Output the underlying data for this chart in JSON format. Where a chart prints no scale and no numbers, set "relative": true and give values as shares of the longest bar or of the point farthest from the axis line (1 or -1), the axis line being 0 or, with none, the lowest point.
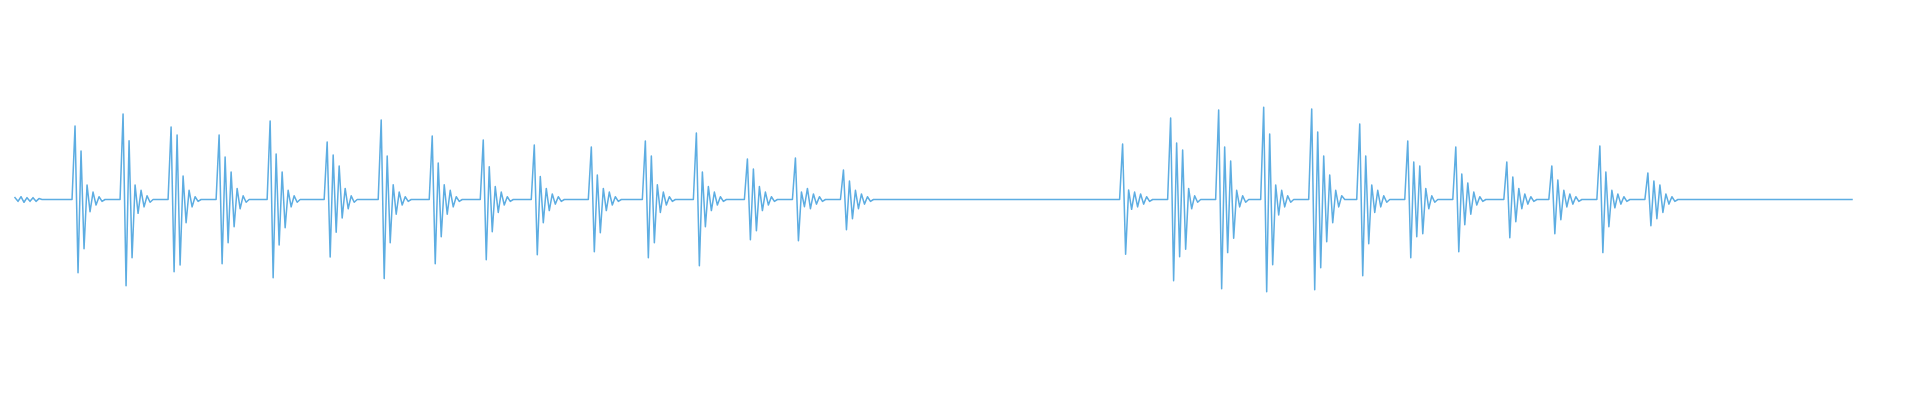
{
  "chart_data": {
    "type": "line",
    "relative": true,
    "categories": [
      null,
      null,
      null,
      null,
      null,
      null,
      null,
      null,
      null,
      null,
      null,
      null,
      null,
      null,
      null,
      null,
      null,
      null,
      null,
      null,
      null,
      null,
      null,
      null,
      null,
      null,
      null,
      null,
      null,
      null,
      null,
      null,
      null,
      null,
      null,
      null,
      null,
      null,
      null,
      null,
      null,
      null,
      null,
      null,
      null,
      null,
      null,
      null,
      null,
      null,
      null,
      null,
      null,
      null,
      null,
      null,
      null,
      null,
      null,
      null,
      null,
      null,
      null,
      null,
      null,
      null,
      null,
      null,
      null,
      null,
      null,
      null,
      null,
      null,
      null,
      null,
      null,
      null,
      null,
      null,
      null,
      null,
      null,
      null,
      null,
      null,
      null,
      null,
      null,
      null,
      null,
      null,
      null,
      null,
      null,
      null,
      null,
      null,
      null,
      null,
      null,
      null,
      null,
      null,
      null,
      null,
      null,
      null,
      null,
      null,
      null,
      null,
      null,
      null,
      null,
      null,
      null,
      null,
      null,
      null,
      null,
      null,
      null,
      null,
      null,
      null,
      null,
      null,
      null,
      null,
      null,
      null,
      null,
      null,
      null,
      null,
      null,
      null,
      null,
      null,
      null,
      null,
      null,
      null,
      null,
      null,
      null,
      null,
      null,
      null,
      null,
      null,
      null,
      null,
      null,
      null,
      null,
      null,
      null,
      null,
      null,
      null,
      null,
      null,
      null,
      null,
      null,
      null,
      null,
      null,
      null,
      null,
      null,
      null,
      null,
      null,
      null,
      null,
      null,
      null,
      null,
      null,
      null,
      null,
      null,
      null,
      null,
      null,
      null,
      null,
      null,
      null,
      null,
      null,
      null,
      null,
      null,
      null,
      null,
      null,
      null,
      null,
      null,
      null,
      null,
      null,
      null,
      null,
      null,
      null,
      null,
      null,
      null,
      null,
      null,
      null,
      null,
      null,
      null,
      null,
      null,
      null,
      null,
      null,
      null,
      null,
      null,
      null,
      null,
      null,
      null,
      null,
      null,
      null,
      null,
      null,
      null,
      null,
      null,
      null,
      null,
      null,
      null,
      null,
      null,
      null,
      null,
      null,
      null,
      null,
      null,
      null,
      null,
      null,
      null,
      null,
      null,
      null,
      null,
      null,
      null,
      null,
      null,
      null,
      null,
      null,
      null,
      null,
      null,
      null,
      null,
      null,
      null,
      null,
      null,
      null,
      null,
      null,
      null,
      null,
      null,
      null,
      null,
      null,
      null,
      null,
      null,
      null,
      null,
      null,
      null,
      null,
      null,
      null,
      null,
      null,
      null,
      null,
      null,
      null,
      null,
      null,
      null,
      null,
      null,
      null,
      null,
      null,
      null,
      null,
      null,
      null,
      null,
      null,
      null,
      null,
      null,
      null,
      null,
      null,
      null,
      null,
      null,
      null,
      null,
      null,
      null,
      null,
      null,
      null,
      null,
      null,
      null,
      null,
      null,
      null,
      null,
      null,
      null,
      null,
      null,
      null,
      null,
      null,
      null,
      null,
      null,
      null,
      null,
      null,
      null,
      null,
      null,
      null,
      null,
      null,
      null,
      null,
      null,
      null,
      null,
      null,
      null,
      null,
      null,
      null,
      null,
      null,
      null,
      null,
      null,
      null,
      null,
      null,
      null,
      null,
      null,
      null,
      null,
      null,
      null,
      null,
      null,
      null,
      null,
      null,
      null,
      null,
      null,
      null,
      null,
      null,
      null,
      null,
      null,
      null,
      null,
      null,
      null,
      null,
      null,
      null,
      null,
      null,
      null,
      null,
      null,
      null,
      null,
      null,
      null,
      null,
      null,
      null,
      null,
      null,
      null,
      null,
      null,
      null,
      null,
      null,
      null,
      null,
      null,
      null,
      null,
      null,
      null,
      null,
      null,
      null,
      null,
      null,
      null,
      null,
      null,
      null,
      null,
      null,
      null,
      null,
      null,
      null,
      null,
      null,
      null,
      null,
      null,
      null,
      null,
      null,
      null,
      null,
      null,
      null,
      null,
      null,
      null,
      null,
      null,
      null,
      null,
      null,
      null,
      null,
      null,
      null,
      null,
      null,
      null,
      null,
      null,
      null,
      null,
      null,
      null,
      null,
      null,
      null,
      null,
      null,
      null,
      null,
      null,
      null,
      null,
      null,
      null,
      null,
      null,
      null,
      null,
      null,
      null,
      null,
      null,
      null,
      null,
      null,
      null,
      null,
      null,
      null,
      null,
      null,
      null,
      null,
      null,
      null,
      null,
      null,
      null,
      null,
      null,
      null,
      null,
      null,
      null,
      null,
      null,
      null,
      null,
      null,
      null,
      null,
      null,
      null,
      null,
      null,
      null,
      null,
      null,
      null,
      null,
      null,
      null,
      null,
      null,
      null,
      null,
      null,
      null,
      null,
      null,
      null,
      null,
      null,
      null,
      null,
      null,
      null,
      null,
      null,
      null,
      null,
      null,
      null,
      null,
      null,
      null,
      null,
      null,
      null,
      null,
      null,
      null,
      null,
      null,
      null,
      null,
      null,
      null,
      null,
      null,
      null,
      null,
      null,
      null,
      null,
      null,
      null,
      null,
      null,
      null,
      null,
      null,
      null,
      null,
      null,
      null,
      null,
      null,
      null,
      null,
      null,
      null,
      null,
      null,
      null,
      null,
      null,
      null,
      null,
      null,
      null,
      null,
      null,
      null,
      null,
      null,
      null,
      null
    ],
    "series": [
      {
        "color": "#5dade2",
        "values": [
          0.51,
          0.49,
          0.515,
          0.485,
          0.51,
          0.49,
          0.51,
          0.49,
          0.505,
          0.5,
          0.5,
          0.5,
          0.5,
          0.5,
          0.5,
          0.5,
          0.5,
          0.5,
          0.5,
          0.5,
          0.899,
          0.103,
          0.763,
          0.233,
          0.579,
          0.434,
          0.54,
          0.47,
          0.515,
          0.49,
          0.5,
          0.5,
          0.5,
          0.5,
          0.5,
          0.5,
          0.964,
          0.033,
          0.819,
          0.184,
          0.579,
          0.425,
          0.55,
          0.46,
          0.52,
          0.485,
          0.5,
          0.5,
          0.5,
          0.5,
          0.5,
          0.5,
          0.893,
          0.108,
          0.85,
          0.145,
          0.627,
          0.374,
          0.55,
          0.46,
          0.515,
          0.49,
          0.5,
          0.5,
          0.5,
          0.5,
          0.5,
          0.5,
          0.85,
          0.152,
          0.73,
          0.266,
          0.649,
          0.352,
          0.56,
          0.45,
          0.52,
          0.485,
          0.5,
          0.5,
          0.5,
          0.5,
          0.5,
          0.5,
          0.5,
          0.926,
          0.076,
          0.747,
          0.253,
          0.649,
          0.347,
          0.55,
          0.46,
          0.52,
          0.485,
          0.5,
          0.5,
          0.5,
          0.5,
          0.5,
          0.5,
          0.5,
          0.5,
          0.5,
          0.812,
          0.188,
          0.741,
          0.322,
          0.682,
          0.4,
          0.56,
          0.45,
          0.52,
          0.485,
          0.5,
          0.5,
          0.5,
          0.5,
          0.5,
          0.5,
          0.5,
          0.5,
          0.931,
          0.071,
          0.736,
          0.266,
          0.58,
          0.42,
          0.54,
          0.47,
          0.515,
          0.49,
          0.5,
          0.5,
          0.5,
          0.5,
          0.5,
          0.5,
          0.5,
          0.844,
          0.152,
          0.698,
          0.298,
          0.58,
          0.42,
          0.55,
          0.46,
          0.515,
          0.49,
          0.5,
          0.5,
          0.5,
          0.5,
          0.5,
          0.5,
          0.5,
          0.823,
          0.174,
          0.678,
          0.325,
          0.57,
          0.43,
          0.54,
          0.47,
          0.515,
          0.49,
          0.5,
          0.5,
          0.5,
          0.5,
          0.5,
          0.5,
          0.5,
          0.796,
          0.201,
          0.624,
          0.374,
          0.56,
          0.44,
          0.53,
          0.475,
          0.515,
          0.49,
          0.5,
          0.5,
          0.5,
          0.5,
          0.5,
          0.5,
          0.5,
          0.5,
          0.5,
          0.785,
          0.217,
          0.633,
          0.32,
          0.56,
          0.44,
          0.54,
          0.47,
          0.515,
          0.49,
          0.5,
          0.5,
          0.5,
          0.5,
          0.5,
          0.5,
          0.5,
          0.5,
          0.817,
          0.184,
          0.736,
          0.266,
          0.58,
          0.43,
          0.54,
          0.47,
          0.515,
          0.49,
          0.5,
          0.5,
          0.5,
          0.5,
          0.5,
          0.5,
          0.5,
          0.861,
          0.141,
          0.649,
          0.352,
          0.57,
          0.44,
          0.54,
          0.47,
          0.515,
          0.49,
          0.5,
          0.5,
          0.5,
          0.5,
          0.5,
          0.5,
          0.5,
          0.72,
          0.282,
          0.665,
          0.331,
          0.57,
          0.44,
          0.54,
          0.47,
          0.515,
          0.49,
          0.5,
          0.5,
          0.5,
          0.5,
          0.5,
          0.5,
          0.725,
          0.277,
          0.541,
          0.461,
          0.56,
          0.45,
          0.53,
          0.475,
          0.515,
          0.49,
          0.5,
          0.5,
          0.5,
          0.5,
          0.5,
          0.5,
          0.66,
          0.336,
          0.6,
          0.396,
          0.55,
          0.45,
          0.53,
          0.475,
          0.515,
          0.49,
          0.5,
          0.5,
          0.5,
          0.5,
          0.5,
          0.5,
          0.5,
          0.5,
          0.5,
          0.5,
          0.5,
          0.5,
          0.5,
          0.5,
          0.5,
          0.5,
          0.5,
          0.5,
          0.5,
          0.5,
          0.5,
          0.5,
          0.5,
          0.5,
          0.5,
          0.5,
          0.5,
          0.5,
          0.5,
          0.5,
          0.5,
          0.5,
          0.5,
          0.5,
          0.5,
          0.5,
          0.5,
          0.5,
          0.5,
          0.5,
          0.5,
          0.5,
          0.5,
          0.5,
          0.5,
          0.5,
          0.5,
          0.5,
          0.5,
          0.5,
          0.5,
          0.5,
          0.5,
          0.5,
          0.5,
          0.5,
          0.5,
          0.5,
          0.5,
          0.5,
          0.5,
          0.5,
          0.5,
          0.5,
          0.5,
          0.5,
          0.5,
          0.5,
          0.5,
          0.5,
          0.5,
          0.5,
          0.5,
          0.5,
          0.5,
          0.5,
          0.5,
          0.5,
          0.5,
          0.5,
          0.5,
          0.5,
          0.5,
          0.801,
          0.203,
          0.552,
          0.447,
          0.54,
          0.46,
          0.53,
          0.475,
          0.515,
          0.49,
          0.5,
          0.5,
          0.5,
          0.5,
          0.5,
          0.5,
          0.942,
          0.06,
          0.806,
          0.19,
          0.768,
          0.23,
          0.56,
          0.45,
          0.52,
          0.485,
          0.5,
          0.5,
          0.5,
          0.5,
          0.5,
          0.5,
          0.985,
          0.016,
          0.785,
          0.212,
          0.709,
          0.29,
          0.55,
          0.46,
          0.52,
          0.485,
          0.5,
          0.5,
          0.5,
          0.5,
          0.5,
          1,
          0,
          0.855,
          0.146,
          0.579,
          0.416,
          0.55,
          0.46,
          0.52,
          0.485,
          0.5,
          0.5,
          0.5,
          0.5,
          0.5,
          0.5,
          0.991,
          0.011,
          0.866,
          0.13,
          0.736,
          0.271,
          0.633,
          0.374,
          0.55,
          0.46,
          0.52,
          0.5,
          0.5,
          0.5,
          0.5,
          0.5,
          0.909,
          0.087,
          0.736,
          0.26,
          0.579,
          0.43,
          0.55,
          0.46,
          0.52,
          0.485,
          0.5,
          0.5,
          0.5,
          0.5,
          0.5,
          0.5,
          0.817,
          0.184,
          0.703,
          0.298,
          0.682,
          0.315,
          0.56,
          0.45,
          0.52,
          0.485,
          0.5,
          0.5,
          0.5,
          0.5,
          0.5,
          0.5,
          0.785,
          0.217,
          0.638,
          0.363,
          0.59,
          0.42,
          0.54,
          0.47,
          0.515,
          0.49,
          0.5,
          0.5,
          0.5,
          0.5,
          0.5,
          0.5,
          0.5,
          0.703,
          0.293,
          0.622,
          0.38,
          0.56,
          0.45,
          0.53,
          0.475,
          0.515,
          0.49,
          0.5,
          0.5,
          0.5,
          0.5,
          0.5,
          0.682,
          0.315,
          0.606,
          0.39,
          0.55,
          0.46,
          0.53,
          0.475,
          0.515,
          0.49,
          0.5,
          0.5,
          0.5,
          0.5,
          0.5,
          0.5,
          0.79,
          0.212,
          0.649,
          0.352,
          0.55,
          0.455,
          0.53,
          0.475,
          0.515,
          0.49,
          0.5,
          0.5,
          0.5,
          0.5,
          0.5,
          0.5,
          0.644,
          0.358,
          0.6,
          0.396,
          0.579,
          0.43,
          0.53,
          0.475,
          0.515,
          0.49,
          0.5,
          0.5,
          0.5,
          0.5,
          0.5,
          0.5,
          0.5,
          0.5,
          0.5,
          0.5,
          0.5,
          0.5,
          0.5,
          0.5,
          0.5,
          0.5,
          0.5,
          0.5,
          0.5,
          0.5,
          0.5,
          0.5,
          0.5,
          0.5,
          0.5,
          0.5,
          0.5,
          0.5,
          0.5,
          0.5,
          0.5,
          0.5,
          0.5,
          0.5,
          0.5,
          0.5,
          0.5,
          0.5,
          0.5,
          0.5,
          0.5,
          0.5,
          0.5,
          0.5,
          0.5,
          0.5,
          0.5,
          0.5,
          0.5,
          0.5,
          0.5,
          0.5,
          0.5,
          0.5,
          0.5,
          0.5,
          0.5,
          0.5,
          0.5
        ]
      }
    ]
  }
}
